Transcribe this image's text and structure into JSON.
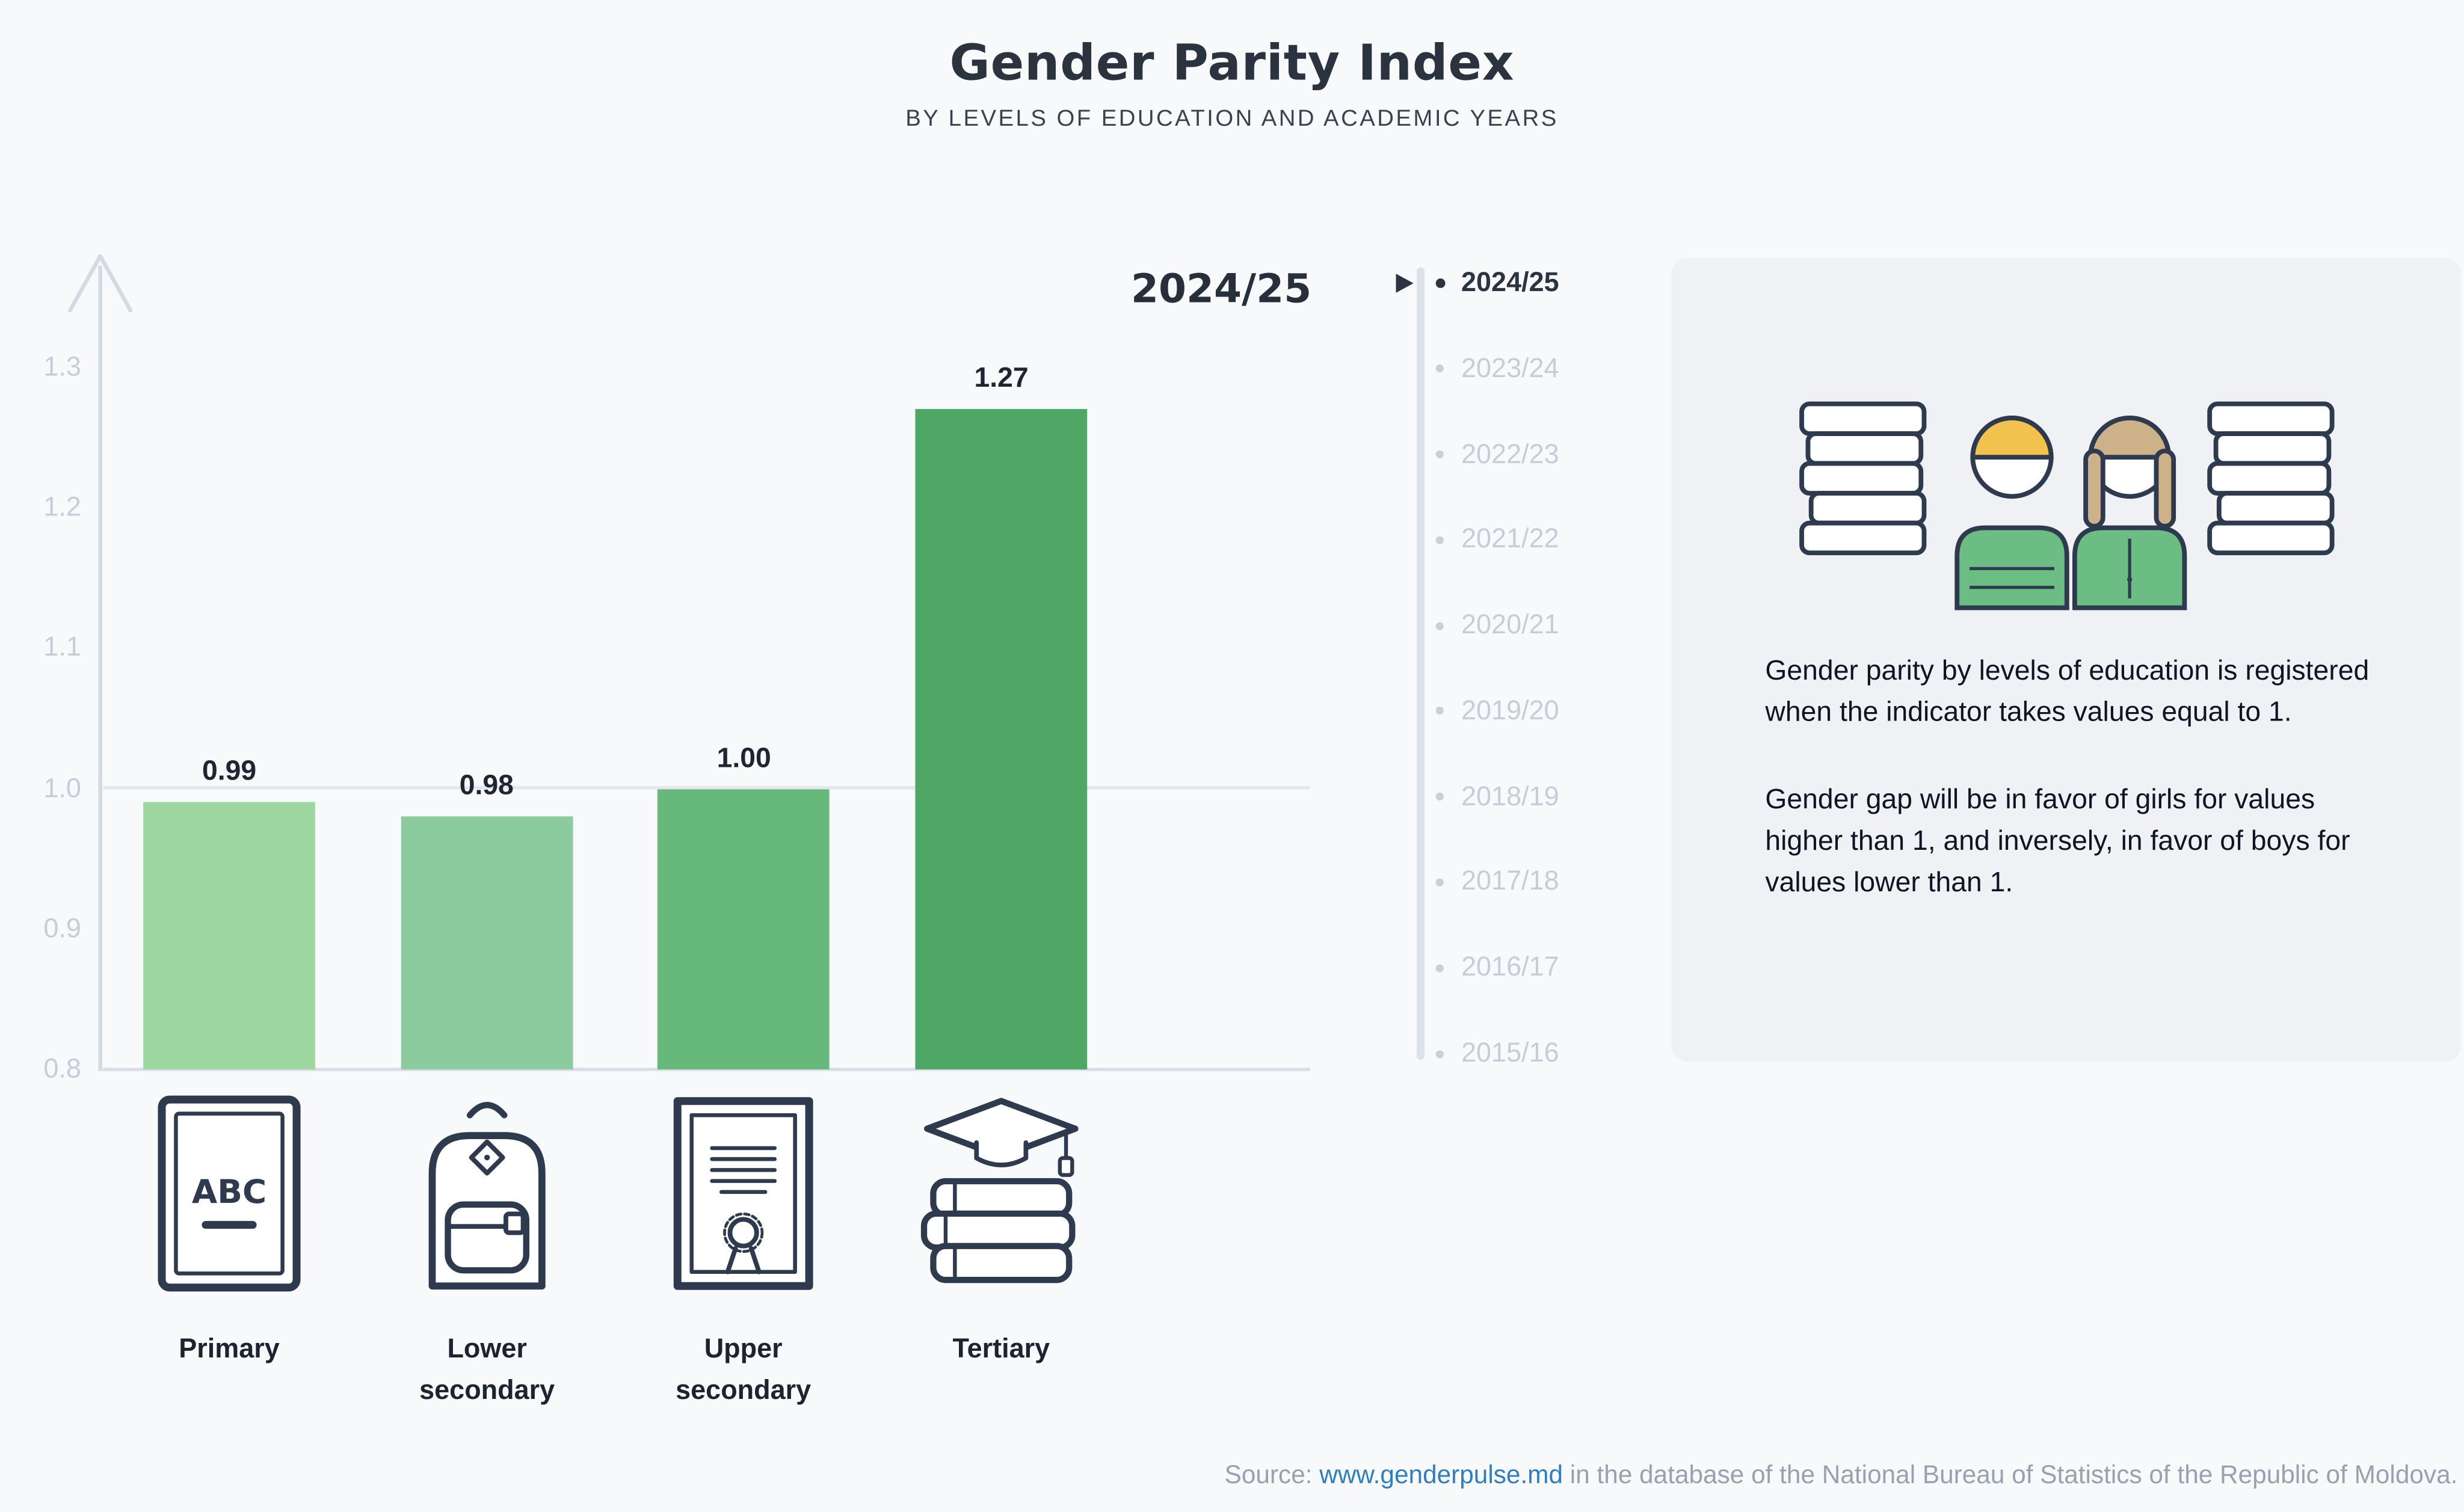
{
  "header": {
    "title": "Gender Parity Index",
    "subtitle": "BY LEVELS OF EDUCATION AND ACADEMIC YEARS"
  },
  "chart_data": {
    "type": "bar",
    "title": "Gender Parity Index",
    "subtitle": "BY LEVELS OF EDUCATION AND ACADEMIC YEARS",
    "selected_year": "2024/25",
    "categories": [
      "Primary",
      "Lower secondary",
      "Upper secondary",
      "Tertiary"
    ],
    "category_icons": [
      "abc-book-icon",
      "backpack-icon",
      "diploma-icon",
      "books-graduation-cap-icon"
    ],
    "values": [
      0.99,
      0.98,
      1.0,
      1.27
    ],
    "value_labels": [
      "0.99",
      "0.98",
      "1.00",
      "1.27"
    ],
    "bar_colors": [
      "#9ed7a0",
      "#8ccb9d",
      "#66b97a",
      "#4fa766"
    ],
    "ylim": [
      0.8,
      1.3
    ],
    "ytick_labels": [
      "0.8",
      "0.9",
      "1.0",
      "1.1",
      "1.2",
      "1.3"
    ],
    "reference_line": 1.0,
    "grid": false,
    "legend_position": "none"
  },
  "timeline": {
    "years": [
      "2024/25",
      "2023/24",
      "2022/23",
      "2021/22",
      "2020/21",
      "2019/20",
      "2018/19",
      "2017/18",
      "2016/17",
      "2015/16"
    ],
    "selected": "2024/25"
  },
  "info_panel": {
    "paragraph1": "Gender parity by levels of education is registered when the indicator takes values equal to 1.",
    "paragraph2": "Gender gap will be in favor of girls for values higher than 1, and inversely, in favor of boys for values lower than 1."
  },
  "footer": {
    "source_prefix": "Source: ",
    "link": "www.genderpulse.md",
    "source_suffix": " in the database of the National Bureau of Statistics of the Republic of Moldova."
  },
  "colors": {
    "accent_green": "#57a86d",
    "axis_gray": "#d9dee5",
    "tick_text_gray": "#c5cdd7",
    "text_dark": "#2b3440",
    "link_blue": "#2e7fc1",
    "panel_bg": "#eff1f5",
    "page_bg": "#f8f9fb",
    "illustration_yellow": "#f2c14e",
    "illustration_tan": "#cdb189",
    "outline_navy": "#2e3a4d"
  }
}
